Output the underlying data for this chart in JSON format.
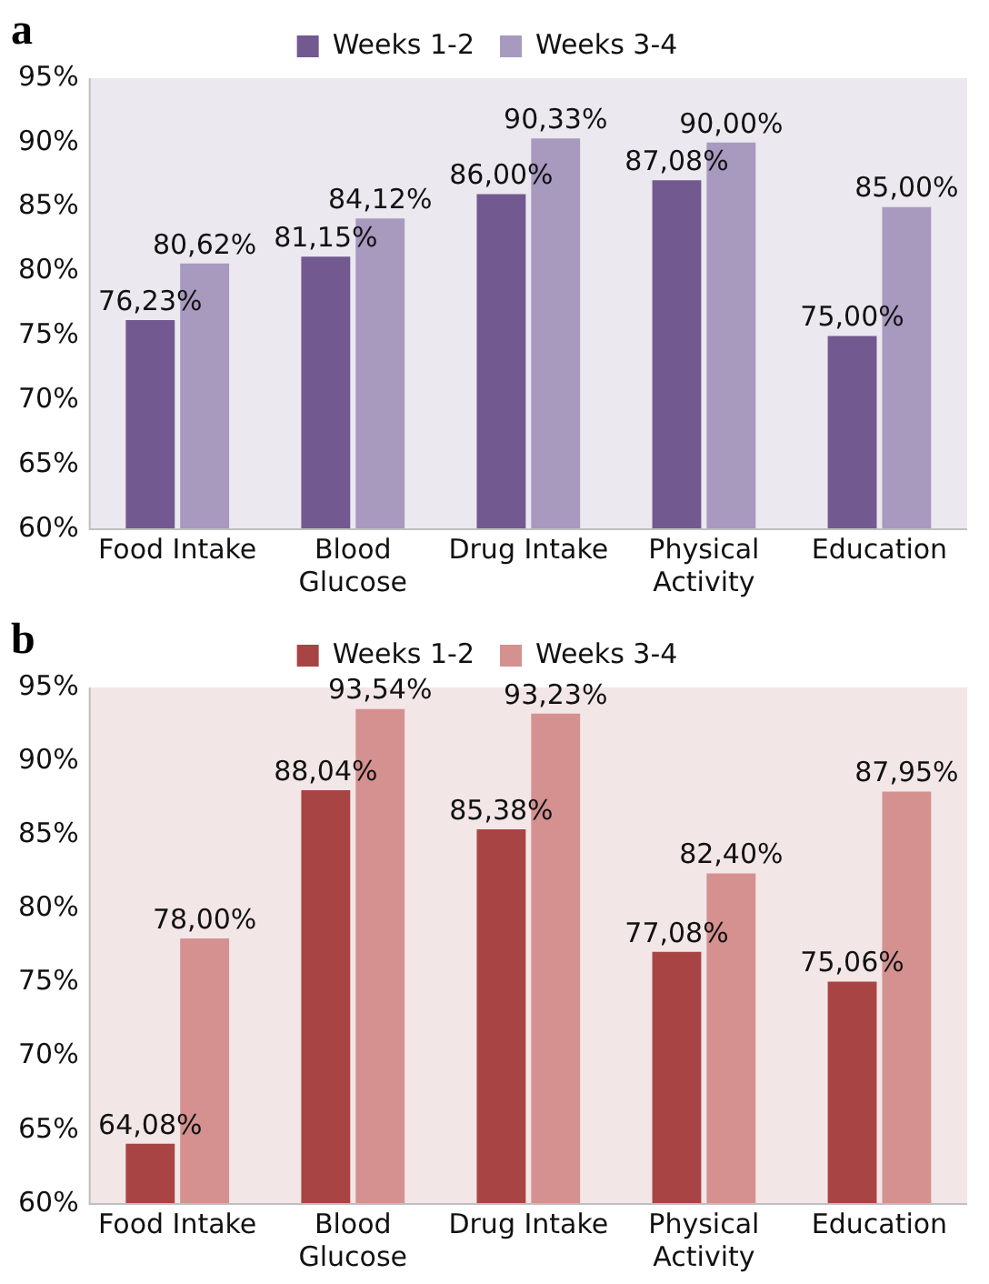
{
  "chart_data": [
    {
      "type": "bar",
      "title": "a",
      "categories": [
        "Food Intake",
        "Blood\nGlucose",
        "Drug Intake",
        "Physical\nActivity",
        "Education"
      ],
      "series": [
        {
          "name": "Weeks 1-2",
          "color": "#725990",
          "values": [
            76.23,
            81.15,
            86.0,
            87.08,
            75.0
          ],
          "value_labels": [
            "76,23%",
            "81,15%",
            "86,00%",
            "87,08%",
            "75,00%"
          ]
        },
        {
          "name": "Weeks 3-4",
          "color": "#a899bf",
          "values": [
            80.62,
            84.12,
            90.33,
            90.0,
            85.0
          ],
          "value_labels": [
            "80,62%",
            "84,12%",
            "90,33%",
            "90,00%",
            "85,00%"
          ]
        }
      ],
      "ylim": [
        60,
        95
      ],
      "yticks": [
        {
          "value": 60,
          "label": "60%"
        },
        {
          "value": 65,
          "label": "65%"
        },
        {
          "value": 70,
          "label": "70%"
        },
        {
          "value": 75,
          "label": "75%"
        },
        {
          "value": 80,
          "label": "80%"
        },
        {
          "value": 85,
          "label": "85%"
        },
        {
          "value": 90,
          "label": "90%"
        },
        {
          "value": 95,
          "label": "95%"
        }
      ],
      "grid": false,
      "legend": "top"
    },
    {
      "type": "bar",
      "title": "b",
      "categories": [
        "Food Intake",
        "Blood\nGlucose",
        "Drug Intake",
        "Physical\nActivity",
        "Education"
      ],
      "series": [
        {
          "name": "Weeks 1-2",
          "color": "#a84444",
          "values": [
            64.08,
            88.04,
            85.38,
            77.08,
            75.06
          ],
          "value_labels": [
            "64,08%",
            "88,04%",
            "85,38%",
            "77,08%",
            "75,06%"
          ]
        },
        {
          "name": "Weeks 3-4",
          "color": "#d49190",
          "values": [
            78.0,
            93.54,
            93.23,
            82.4,
            87.95
          ],
          "value_labels": [
            "78,00%",
            "93,54%",
            "93,23%",
            "82,40%",
            "87,95%"
          ]
        }
      ],
      "ylim": [
        60,
        95
      ],
      "yticks": [
        {
          "value": 60,
          "label": "60%"
        },
        {
          "value": 65,
          "label": "65%"
        },
        {
          "value": 70,
          "label": "70%"
        },
        {
          "value": 75,
          "label": "75%"
        },
        {
          "value": 80,
          "label": "80%"
        },
        {
          "value": 85,
          "label": "85%"
        },
        {
          "value": 90,
          "label": "90%"
        },
        {
          "value": 95,
          "label": "95%"
        }
      ],
      "grid": false,
      "legend": "top"
    }
  ]
}
